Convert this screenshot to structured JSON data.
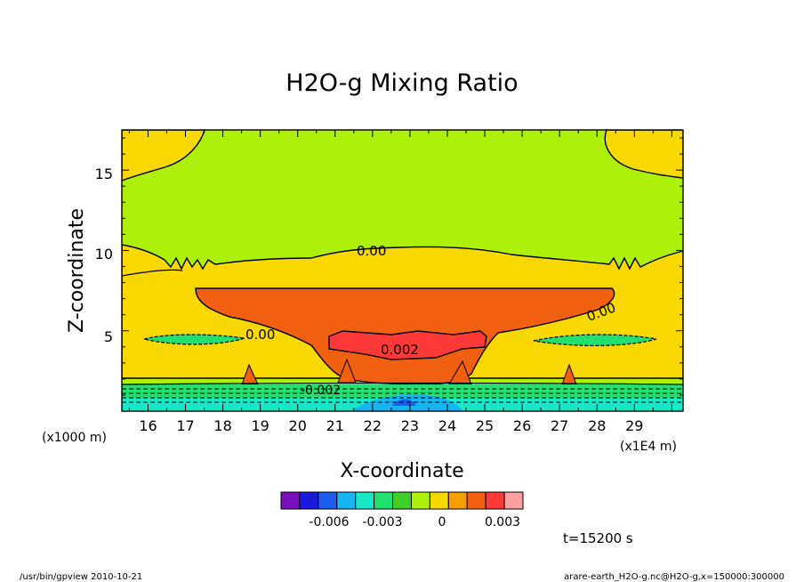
{
  "chart_data": {
    "type": "heatmap",
    "title": "H2O-g Mixing Ratio",
    "xlabel": "X-coordinate",
    "ylabel": "Z-coordinate",
    "x_unit": "(x1E4 m)",
    "y_unit": "(x1000 m)",
    "xlim": [
      15.3,
      30.3
    ],
    "ylim": [
      0,
      17.5
    ],
    "xticks": [
      "16",
      "17",
      "18",
      "19",
      "20",
      "21",
      "22",
      "23",
      "24",
      "25",
      "26",
      "27",
      "28",
      "29"
    ],
    "yticks": [
      "5",
      "10",
      "15"
    ],
    "contour_labels": [
      "0.00",
      "0.00",
      "0.00",
      "0.002",
      "-0.002"
    ],
    "colorbar": {
      "colors": [
        "#7b0fbd",
        "#1a1adc",
        "#1e5cf0",
        "#16b4f0",
        "#18e8c8",
        "#22e070",
        "#3ed028",
        "#aef00a",
        "#f8d800",
        "#f5a000",
        "#f06010",
        "#ff3838",
        "#ffa0a0"
      ],
      "tick_labels": [
        "-0.006",
        "-0.003",
        "0",
        "0.003"
      ]
    }
  },
  "footer": {
    "time_label": "t=15200 s",
    "left_note": "/usr/bin/gpview  2010-10-21",
    "right_note": "arare-earth_H2O-g.nc@H2O-g,x=150000:300000"
  }
}
